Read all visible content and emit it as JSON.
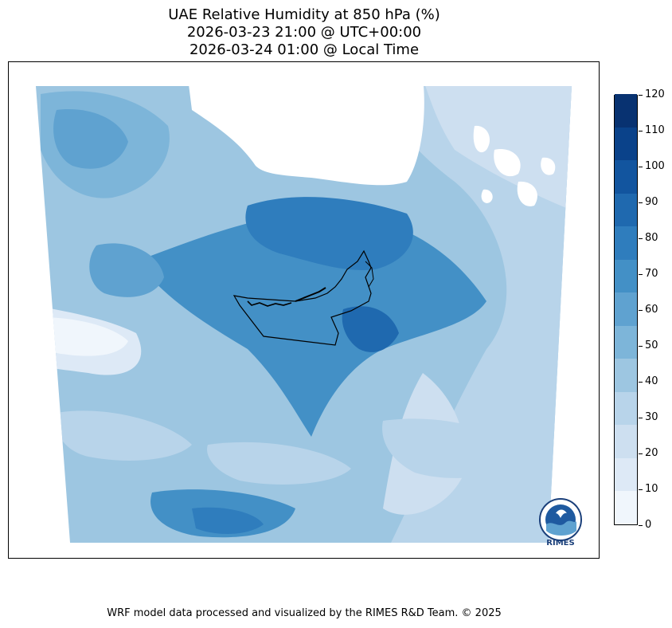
{
  "title": {
    "line1": "UAE Relative Humidity at 850 hPa (%)",
    "line2": "2026-03-23 21:00 @ UTC+00:00",
    "line3": "2026-03-24 01:00 @ Local Time"
  },
  "colorbar": {
    "levels": [
      "0",
      "10",
      "20",
      "30",
      "40",
      "50",
      "60",
      "70",
      "80",
      "90",
      "100",
      "110",
      "120"
    ],
    "colors": [
      "#f0f6fc",
      "#dde9f6",
      "#cddff0",
      "#b8d4ea",
      "#9dc6e1",
      "#7db5d9",
      "#5fa2d0",
      "#4390c6",
      "#2f7dbd",
      "#1f69af",
      "#12559f",
      "#0a428a",
      "#083271"
    ]
  },
  "logo": {
    "text": "RIMES"
  },
  "footer": "WRF model data processed and visualized by the RIMES R&D Team. © 2025"
}
